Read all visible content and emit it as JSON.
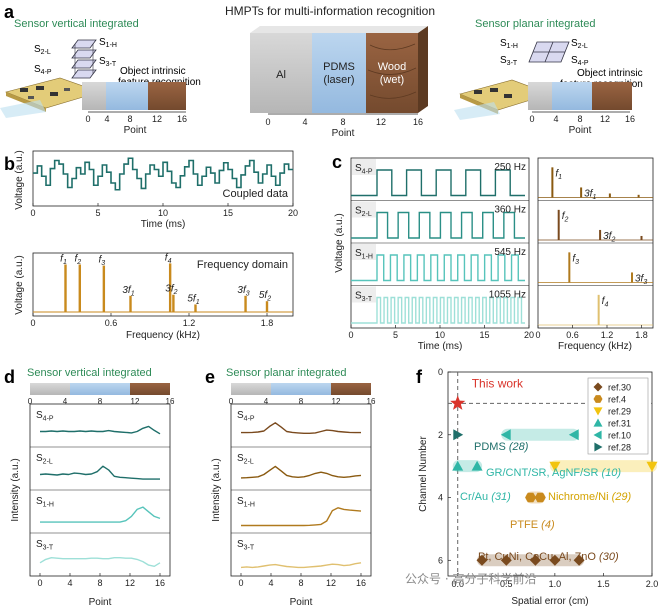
{
  "colors": {
    "teal": "#1f6f6a",
    "teal_mid": "#2a8f86",
    "teal_light": "#57c4bb",
    "teal_pale": "#9ee0d8",
    "gold": "#c98a1d",
    "gold_dark": "#8a5a10",
    "gold_mid": "#b07a1e",
    "gold_light": "#e0c070",
    "brown": "#7a4a1e",
    "title_green": "#2e8b57",
    "red_star": "#d9342b",
    "al_gray": "#c8c8c8",
    "pdms_blue": "#a9c9e8",
    "wood": "#8b5a3c"
  },
  "panel_labels": {
    "a": "a",
    "b": "b",
    "c": "c",
    "d": "d",
    "e": "e",
    "f": "f"
  },
  "panel_a": {
    "title": "HMPTs for multi-information recognition",
    "left_title": "Sensor vertical integrated",
    "right_title": "Sensor planar integrated",
    "left_labels": {
      "s1h": "S",
      "s1h_sub": "1-H",
      "s2l": "S",
      "s2l_sub": "2-L",
      "s3t": "S",
      "s3t_sub": "3-T",
      "s4p": "S",
      "s4p_sub": "4-P"
    },
    "right_labels": {
      "s1h": "S",
      "s1h_sub": "1-H",
      "s2l": "S",
      "s2l_sub": "2-L",
      "s3t": "S",
      "s3t_sub": "3-T",
      "s4p": "S",
      "s4p_sub": "4-P"
    },
    "object_text_line1": "Object intrinsic",
    "object_text_line2": "feature recognition",
    "blocks": [
      "Al",
      "PDMS",
      "Wood"
    ],
    "block_sub": [
      "",
      "(laser)",
      "(wet)"
    ],
    "point_ticks": [
      "0",
      "4",
      "8",
      "12",
      "16"
    ],
    "point_label": "Point"
  },
  "chart_data": [
    {
      "id": "b-top",
      "type": "line",
      "title": "",
      "xlabel": "Time (ms)",
      "ylabel": "Voltage (a.u.)",
      "xlim": [
        0,
        20
      ],
      "xticks": [
        "0",
        "5",
        "10",
        "15",
        "20"
      ],
      "legend_text": "Coupled data",
      "levels": [
        0.62,
        0.78,
        0.55,
        0.35,
        0.72,
        0.9,
        0.82,
        0.6,
        0.3,
        0.5,
        0.74,
        0.6,
        0.86,
        0.7,
        0.35,
        0.55,
        0.8,
        0.64,
        0.4,
        0.25,
        0.6,
        0.82,
        0.95,
        0.7,
        0.5,
        0.28,
        0.6,
        0.8,
        0.7,
        0.55,
        0.86,
        0.66,
        0.4,
        0.3,
        0.56,
        0.76,
        0.9,
        0.6,
        0.35,
        0.55,
        0.75,
        0.62,
        0.4,
        0.68,
        0.85,
        0.7,
        0.5,
        0.3,
        0.58,
        0.78,
        0.9,
        0.64,
        0.4,
        0.6,
        0.8,
        0.55,
        0.35,
        0.62,
        0.82,
        0.7
      ]
    },
    {
      "id": "b-bottom",
      "type": "bar",
      "title": "",
      "xlabel": "Frequency (kHz)",
      "ylabel": "Voltage (a.u.)",
      "xlim": [
        0,
        2.0
      ],
      "xticks": [
        "0",
        "0.6",
        "1.2",
        "1.8"
      ],
      "legend_text": "Frequency domain",
      "peaks": [
        {
          "f": 0.25,
          "h": 0.88,
          "label": "f",
          "sub": "1"
        },
        {
          "f": 0.36,
          "h": 0.88,
          "label": "f",
          "sub": "2"
        },
        {
          "f": 0.545,
          "h": 0.86,
          "label": "f",
          "sub": "3"
        },
        {
          "f": 0.75,
          "h": 0.3,
          "label": "3f",
          "sub": "1"
        },
        {
          "f": 1.055,
          "h": 0.9,
          "label": "f",
          "sub": "4"
        },
        {
          "f": 1.08,
          "h": 0.32,
          "label": "3f",
          "sub": "2"
        },
        {
          "f": 1.25,
          "h": 0.14,
          "label": "5f",
          "sub": "1"
        },
        {
          "f": 1.635,
          "h": 0.3,
          "label": "3f",
          "sub": "3"
        },
        {
          "f": 1.8,
          "h": 0.2,
          "label": "5f",
          "sub": "2"
        }
      ]
    },
    {
      "id": "c-left",
      "type": "line",
      "xlabel": "Time (ms)",
      "ylabel": "Voltage (a.u.)",
      "xlim": [
        0,
        20
      ],
      "xticks": [
        "0",
        "5",
        "10",
        "15",
        "20"
      ],
      "series": [
        {
          "name": "S",
          "sub": "4-P",
          "freq": "250 Hz",
          "cycles": 5
        },
        {
          "name": "S",
          "sub": "2-L",
          "freq": "360 Hz",
          "cycles": 7
        },
        {
          "name": "S",
          "sub": "1-H",
          "freq": "545 Hz",
          "cycles": 11
        },
        {
          "name": "S",
          "sub": "3-T",
          "freq": "1055 Hz",
          "cycles": 21
        }
      ]
    },
    {
      "id": "c-right",
      "type": "bar",
      "xlabel": "Frequency (kHz)",
      "xlim": [
        0,
        2.0
      ],
      "xticks": [
        "0",
        "0.6",
        "1.2",
        "1.8"
      ],
      "series": [
        {
          "peaks": [
            {
              "f": 0.25,
              "h": 0.9,
              "label": "f",
              "sub": "1"
            },
            {
              "f": 0.75,
              "h": 0.3,
              "label": "3f",
              "sub": "1"
            },
            {
              "f": 1.25,
              "h": 0.12,
              "label": ""
            },
            {
              "f": 1.75,
              "h": 0.08,
              "label": ""
            }
          ]
        },
        {
          "peaks": [
            {
              "f": 0.36,
              "h": 0.9,
              "label": "f",
              "sub": "2"
            },
            {
              "f": 1.08,
              "h": 0.3,
              "label": "3f",
              "sub": "2"
            },
            {
              "f": 1.8,
              "h": 0.12,
              "label": ""
            }
          ]
        },
        {
          "peaks": [
            {
              "f": 0.545,
              "h": 0.9,
              "label": "f",
              "sub": "3"
            },
            {
              "f": 1.635,
              "h": 0.3,
              "label": "3f",
              "sub": "3"
            }
          ]
        },
        {
          "peaks": [
            {
              "f": 1.055,
              "h": 0.9,
              "label": "f",
              "sub": "4"
            }
          ]
        }
      ]
    },
    {
      "id": "d",
      "type": "line",
      "title": "Sensor vertical integrated",
      "xlabel": "Point",
      "ylabel": "Intensity (a.u.)",
      "xlim": [
        0,
        16
      ],
      "xticks": [
        "0",
        "4",
        "8",
        "12",
        "16"
      ],
      "series": [
        {
          "name": "S",
          "sub": "4-P",
          "y": [
            0.5,
            0.5,
            0.52,
            0.5,
            0.52,
            0.5,
            0.5,
            0.52,
            0.5,
            0.52,
            0.5,
            0.5,
            0.54,
            0.5,
            0.48,
            0.46,
            0.44,
            0.5,
            0.64,
            0.72,
            0.55,
            0.4
          ]
        },
        {
          "name": "S",
          "sub": "2-L",
          "y": [
            0.5,
            0.52,
            0.5,
            0.48,
            0.52,
            0.5,
            0.56,
            0.54,
            0.5,
            0.52,
            0.62,
            0.86,
            0.7,
            0.42,
            0.38,
            0.36,
            0.34,
            0.32,
            0.3,
            0.3,
            0.3,
            0.3
          ]
        },
        {
          "name": "S",
          "sub": "1-H",
          "y": [
            0.3,
            0.3,
            0.3,
            0.3,
            0.3,
            0.3,
            0.3,
            0.3,
            0.3,
            0.3,
            0.3,
            0.3,
            0.3,
            0.3,
            0.3,
            0.36,
            0.55,
            0.85,
            0.95,
            0.75,
            0.55,
            0.46
          ]
        },
        {
          "name": "S",
          "sub": "3-T",
          "y": [
            0.4,
            0.55,
            0.62,
            0.6,
            0.58,
            0.58,
            0.58,
            0.58,
            0.58,
            0.6,
            0.6,
            0.58,
            0.58,
            0.62,
            0.62,
            0.6,
            0.6,
            0.55,
            0.45,
            0.3,
            0.25,
            0.4
          ]
        }
      ]
    },
    {
      "id": "e",
      "type": "line",
      "title": "Sensor planar integrated",
      "xlabel": "Point",
      "ylabel": "Intensity (a.u.)",
      "xlim": [
        0,
        16
      ],
      "xticks": [
        "0",
        "4",
        "8",
        "12",
        "16"
      ],
      "series": [
        {
          "name": "S",
          "sub": "4-P",
          "y": [
            0.45,
            0.45,
            0.46,
            0.48,
            0.52,
            0.72,
            0.88,
            0.7,
            0.5,
            0.46,
            0.44,
            0.42,
            0.42,
            0.44,
            0.5,
            0.56,
            0.54,
            0.5,
            0.48,
            0.46,
            0.45,
            0.45
          ]
        },
        {
          "name": "S",
          "sub": "2-L",
          "y": [
            0.35,
            0.36,
            0.38,
            0.4,
            0.5,
            0.68,
            0.85,
            0.66,
            0.46,
            0.4,
            0.38,
            0.4,
            0.46,
            0.55,
            0.6,
            0.55,
            0.45,
            0.4,
            0.38,
            0.4,
            0.44,
            0.46
          ]
        },
        {
          "name": "S",
          "sub": "1-H",
          "y": [
            0.15,
            0.15,
            0.15,
            0.15,
            0.15,
            0.15,
            0.15,
            0.15,
            0.15,
            0.15,
            0.15,
            0.15,
            0.16,
            0.18,
            0.2,
            0.35,
            0.8,
            0.92,
            0.85,
            0.82,
            0.8,
            0.78
          ]
        },
        {
          "name": "S",
          "sub": "3-T",
          "y": [
            0.2,
            0.22,
            0.2,
            0.22,
            0.26,
            0.3,
            0.32,
            0.28,
            0.24,
            0.22,
            0.2,
            0.2,
            0.22,
            0.24,
            0.26,
            0.3,
            0.34,
            0.32,
            0.28,
            0.3,
            0.36,
            0.4
          ]
        }
      ]
    },
    {
      "id": "f",
      "type": "scatter",
      "xlabel": "Spatial error (cm)",
      "ylabel": "Channel Number",
      "xlim": [
        -0.1,
        2.0
      ],
      "ylim": [
        0,
        6.5
      ],
      "xticks": [
        "0.0",
        "0.5",
        "1.0",
        "1.5",
        "2.0"
      ],
      "yticks": [
        "0",
        "2",
        "4",
        "6"
      ],
      "highlight": {
        "x": 0,
        "y": 1,
        "label": "This work"
      },
      "groups": [
        {
          "ref": "ref.30",
          "marker": "diamond",
          "color": "#7a4a1e",
          "points": [
            [
              0.25,
              6
            ],
            [
              0.5,
              6
            ],
            [
              0.8,
              6
            ],
            [
              1.0,
              6
            ],
            [
              1.25,
              6
            ]
          ],
          "label": "Pt, CuNi, CoCu, Al, ZnO",
          "label_ref": "(30)"
        },
        {
          "ref": "ref.4",
          "marker": "hexagon",
          "color": "#c98a1d",
          "points": [
            [
              0.75,
              4
            ],
            [
              0.85,
              4
            ]
          ],
          "label": "PTFE",
          "label_ref": "(4)"
        },
        {
          "ref": "ref.29",
          "marker": "triangle-down",
          "color": "#f2c40f",
          "points": [
            [
              1.0,
              3
            ],
            [
              2.0,
              3
            ]
          ],
          "label": "Nichrome/Ni",
          "label_ref": "(29)"
        },
        {
          "ref": "ref.31",
          "marker": "triangle-up",
          "color": "#2fb6a6",
          "points": [
            [
              0.0,
              3
            ],
            [
              0.2,
              3
            ]
          ],
          "label": "Cr/Au",
          "label_ref": "(31)"
        },
        {
          "ref": "ref.10",
          "marker": "triangle-left",
          "color": "#2fb6a6",
          "points": [
            [
              0.5,
              2
            ],
            [
              1.2,
              2
            ]
          ],
          "label": "GR/CNT/SR, AgNF/SR",
          "label_ref": "(10)"
        },
        {
          "ref": "ref.28",
          "marker": "triangle-right",
          "color": "#1f6f6a",
          "points": [
            [
              0.0,
              2
            ]
          ],
          "label": "PDMS",
          "label_ref": "(28)"
        }
      ]
    }
  ],
  "watermark": "公众号 · 高分子科学前沿"
}
